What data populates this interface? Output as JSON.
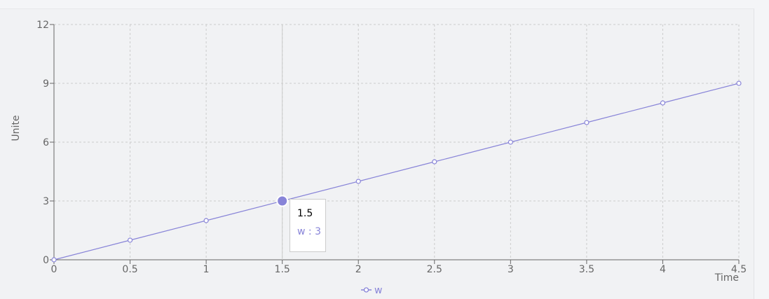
{
  "chart_data": {
    "type": "line",
    "x": [
      0,
      0.5,
      1,
      1.5,
      2,
      2.5,
      3,
      3.5,
      4,
      4.5
    ],
    "series": [
      {
        "name": "w",
        "values": [
          0,
          1,
          2,
          3,
          4,
          5,
          6,
          7,
          8,
          9
        ]
      }
    ],
    "xlabel": "Time",
    "ylabel": "Unite",
    "xlim": [
      0,
      4.5
    ],
    "ylim": [
      0,
      12
    ],
    "x_ticks": [
      "0",
      "0.5",
      "1",
      "1.5",
      "2",
      "2.5",
      "3",
      "3.5",
      "4",
      "4.5"
    ],
    "y_ticks": [
      "0",
      "3",
      "6",
      "9",
      "12"
    ],
    "grid": true,
    "legend": "bottom-center",
    "line_color": "#8884d8",
    "active_index": 3,
    "tooltip": {
      "label": "1.5",
      "series_name": "w",
      "separator": " : ",
      "value": "3"
    }
  }
}
